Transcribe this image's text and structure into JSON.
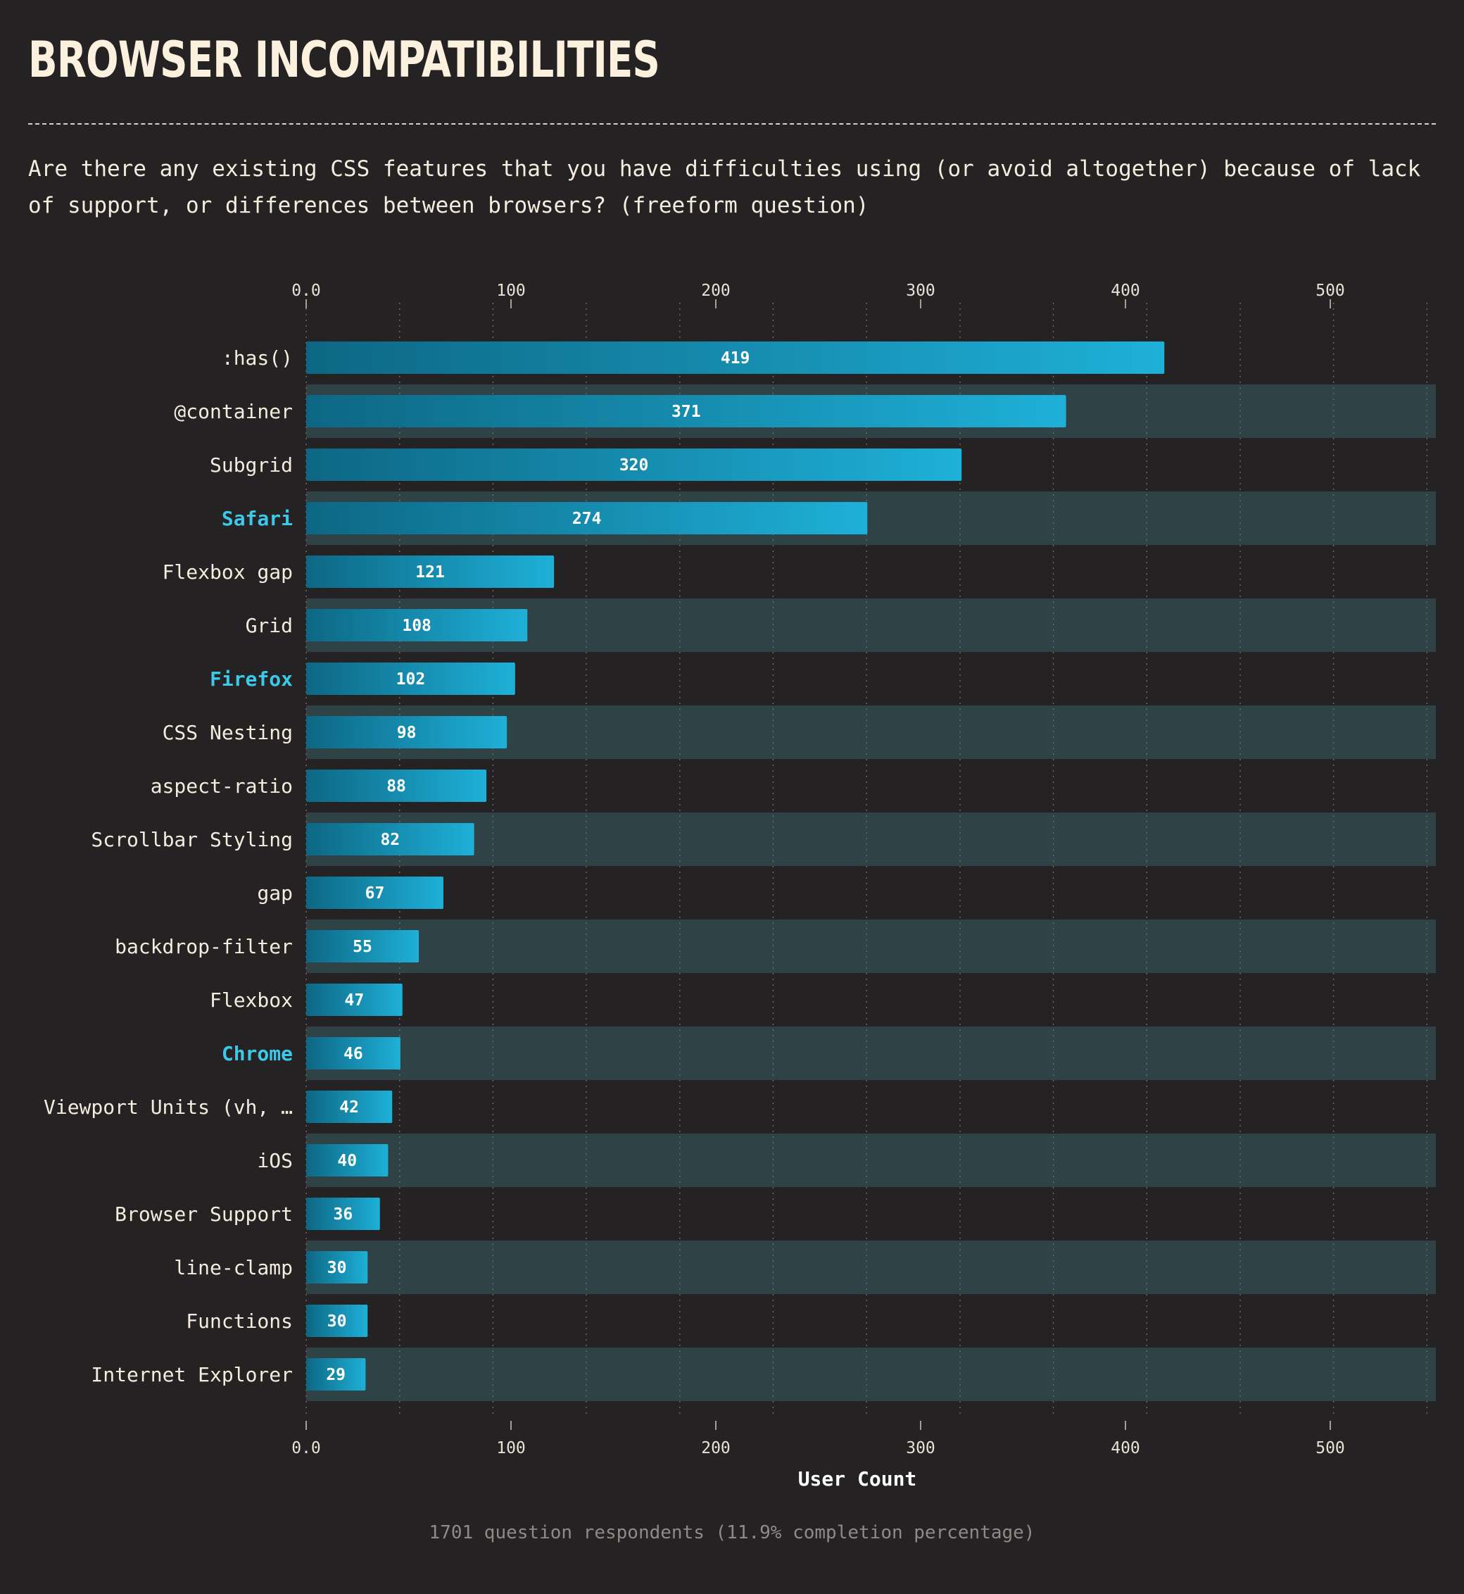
{
  "title": "BROWSER INCOMPATIBILITIES",
  "question": "Are there any existing CSS features that you have difficulties using (or avoid altogether) because of lack of support, or differences between browsers? (freeform question)",
  "footnote": "1701 question respondents (11.9% completion percentage)",
  "colors": {
    "background": "#252223",
    "band": "#2f4246",
    "bar_start": "#0d6784",
    "bar_end": "#1eb0d8",
    "highlight_label": "#3cc8e8",
    "text": "#f3ecdf"
  },
  "chart_data": {
    "type": "bar",
    "orientation": "horizontal",
    "xlabel": "User Count",
    "xlim": [
      0,
      550
    ],
    "xticks": [
      0,
      100,
      200,
      300,
      400,
      500
    ],
    "xtick_labels": [
      "0.0",
      "100",
      "200",
      "300",
      "400",
      "500"
    ],
    "categories": [
      ":has()",
      "@container",
      "Subgrid",
      "Safari",
      "Flexbox gap",
      "Grid",
      "Firefox",
      "CSS Nesting",
      "aspect-ratio",
      "Scrollbar Styling",
      "gap",
      "backdrop-filter",
      "Flexbox",
      "Chrome",
      "Viewport Units (vh, …",
      "iOS",
      "Browser Support",
      "line-clamp",
      "Functions",
      "Internet Explorer"
    ],
    "values": [
      419,
      371,
      320,
      274,
      121,
      108,
      102,
      98,
      88,
      82,
      67,
      55,
      47,
      46,
      42,
      40,
      36,
      30,
      30,
      29
    ],
    "highlighted": [
      "Safari",
      "Firefox",
      "Chrome"
    ],
    "grid": true
  }
}
